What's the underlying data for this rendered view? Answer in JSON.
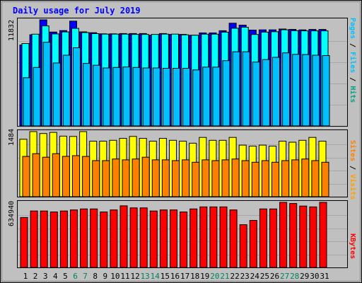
{
  "chart_data": [
    {
      "type": "bar",
      "title": "Daily usage for July 2019",
      "categories": [
        "1",
        "2",
        "3",
        "4",
        "5",
        "6",
        "7",
        "8",
        "9",
        "10",
        "11",
        "12",
        "13",
        "14",
        "15",
        "16",
        "17",
        "18",
        "19",
        "20",
        "21",
        "22",
        "23",
        "24",
        "25",
        "26",
        "27",
        "28",
        "29",
        "30",
        "31"
      ],
      "weekend_days": [
        "6",
        "7",
        "13",
        "14",
        "20",
        "21",
        "27",
        "28"
      ],
      "ylabel_parts": [
        "Pages",
        "Files",
        "Hits"
      ],
      "ymax_label": "11832",
      "ymax": 11832,
      "series": [
        {
          "name": "Hits",
          "color": "#0000ff",
          "values": [
            9020,
            10170,
            11832,
            10470,
            10630,
            11680,
            10490,
            10400,
            10270,
            10270,
            10300,
            10300,
            10300,
            10120,
            10300,
            10210,
            10210,
            10110,
            10370,
            10370,
            10620,
            11450,
            11240,
            10690,
            10710,
            10710,
            10810,
            10770,
            10710,
            10760,
            10760
          ]
        },
        {
          "name": "Files",
          "color": "#00ffff",
          "values": [
            9190,
            10230,
            11150,
            10260,
            10480,
            10880,
            10410,
            10290,
            10240,
            10240,
            10240,
            10210,
            10210,
            10210,
            10240,
            10240,
            10160,
            10110,
            10230,
            10230,
            10450,
            10890,
            11000,
            10200,
            10460,
            10510,
            10720,
            10620,
            10600,
            10600,
            10600
          ]
        },
        {
          "name": "Pages",
          "color": "#00c0ff",
          "values": [
            5380,
            6520,
            9330,
            7020,
            7890,
            8720,
            6970,
            6770,
            6470,
            6520,
            6580,
            6520,
            6470,
            6470,
            6430,
            6430,
            6430,
            6250,
            6560,
            6560,
            7280,
            8270,
            8270,
            7120,
            7400,
            7650,
            8150,
            7980,
            7960,
            7890,
            7850
          ]
        }
      ]
    },
    {
      "type": "bar",
      "categories": [
        "1",
        "2",
        "3",
        "4",
        "5",
        "6",
        "7",
        "8",
        "9",
        "10",
        "11",
        "12",
        "13",
        "14",
        "15",
        "16",
        "17",
        "18",
        "19",
        "20",
        "21",
        "22",
        "23",
        "24",
        "25",
        "26",
        "27",
        "28",
        "29",
        "30",
        "31"
      ],
      "ylabel_parts": [
        "Sites",
        "Visits"
      ],
      "ymax_label": "1484",
      "ymax": 1484,
      "series": [
        {
          "name": "Visits",
          "color": "#ffff00",
          "values": [
            1310,
            1484,
            1440,
            1466,
            1380,
            1374,
            1484,
            1266,
            1266,
            1286,
            1330,
            1374,
            1330,
            1266,
            1330,
            1286,
            1266,
            1220,
            1352,
            1286,
            1286,
            1352,
            1176,
            1154,
            1176,
            1154,
            1266,
            1242,
            1286,
            1352,
            1266
          ]
        },
        {
          "name": "Sites",
          "color": "#ff8000",
          "values": [
            918,
            980,
            900,
            980,
            920,
            936,
            918,
            822,
            822,
            860,
            840,
            860,
            900,
            840,
            840,
            822,
            840,
            786,
            840,
            822,
            840,
            860,
            822,
            786,
            822,
            786,
            822,
            840,
            860,
            822,
            786
          ]
        }
      ]
    },
    {
      "type": "bar",
      "categories": [
        "1",
        "2",
        "3",
        "4",
        "5",
        "6",
        "7",
        "8",
        "9",
        "10",
        "11",
        "12",
        "13",
        "14",
        "15",
        "16",
        "17",
        "18",
        "19",
        "20",
        "21",
        "22",
        "23",
        "24",
        "25",
        "26",
        "27",
        "28",
        "29",
        "30",
        "31"
      ],
      "ylabel_parts": [
        "KBytes"
      ],
      "ymax_label": "634940",
      "ymax": 634940,
      "series": [
        {
          "name": "KBytes",
          "color": "#ff0000",
          "values": [
            487000,
            551000,
            551000,
            541000,
            551000,
            561000,
            571000,
            571000,
            541000,
            561000,
            601000,
            581000,
            581000,
            551000,
            561000,
            561000,
            541000,
            571000,
            591000,
            591000,
            591000,
            561000,
            417000,
            459000,
            571000,
            571000,
            634940,
            624000,
            599000,
            591000,
            634940
          ]
        }
      ]
    }
  ]
}
